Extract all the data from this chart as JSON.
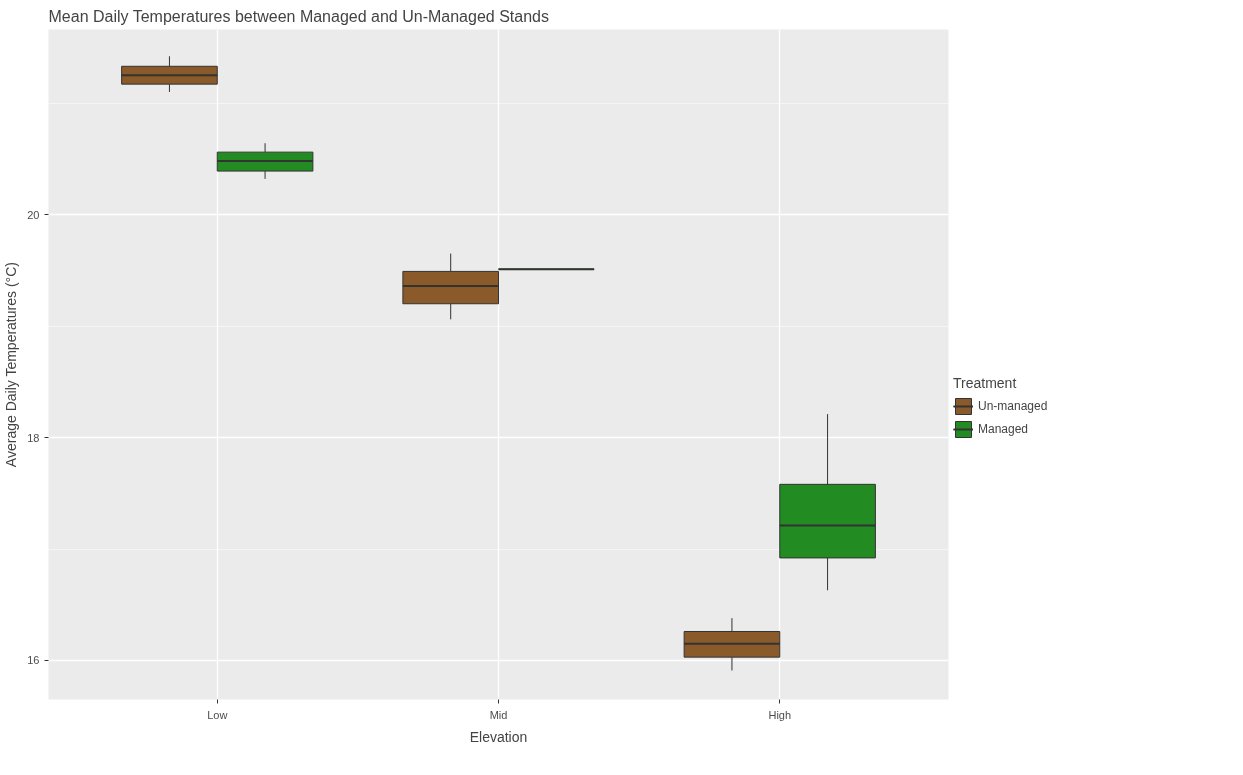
{
  "chart_data": {
    "type": "box",
    "title": "Mean Daily Temperatures between Managed and Un-Managed Stands",
    "xlabel": "Elevation",
    "ylabel": "Average Daily Temperatures (°C)",
    "legend_title": "Treatment",
    "categories": [
      "Low",
      "Mid",
      "High"
    ],
    "series": [
      {
        "name": "Un-managed",
        "color": "#8b5a2b",
        "boxes": [
          {
            "low": 21.1,
            "q1": 21.17,
            "median": 21.25,
            "q3": 21.33,
            "high": 21.42
          },
          {
            "low": 19.06,
            "q1": 19.2,
            "median": 19.36,
            "q3": 19.49,
            "high": 19.65
          },
          {
            "low": 15.91,
            "q1": 16.03,
            "median": 16.15,
            "q3": 16.26,
            "high": 16.38
          }
        ]
      },
      {
        "name": "Managed",
        "color": "#228b22",
        "boxes": [
          {
            "low": 20.32,
            "q1": 20.39,
            "median": 20.48,
            "q3": 20.56,
            "high": 20.64
          },
          {
            "low": 19.51,
            "q1": 19.51,
            "median": 19.51,
            "q3": 19.51,
            "high": 19.51
          },
          {
            "low": 16.63,
            "q1": 16.92,
            "median": 17.21,
            "q3": 17.58,
            "high": 18.21
          }
        ]
      }
    ],
    "ylim": [
      15.65,
      21.66
    ],
    "yticks": [
      16,
      18,
      20
    ],
    "grid": true,
    "legend": "right"
  }
}
